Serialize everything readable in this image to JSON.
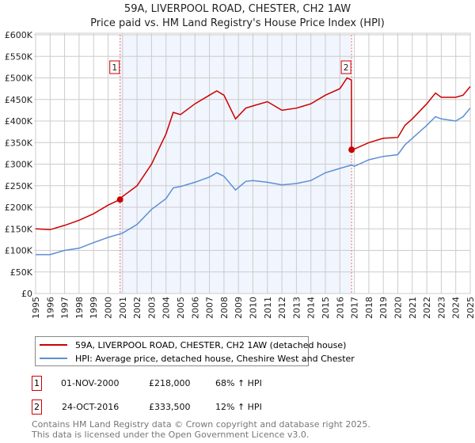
{
  "header": {
    "title": "59A, LIVERPOOL ROAD, CHESTER, CH2 1AW",
    "subtitle": "Price paid vs. HM Land Registry's House Price Index (HPI)"
  },
  "chart_data": {
    "type": "line",
    "title": "59A, LIVERPOOL ROAD, CHESTER, CH2 1AW",
    "subtitle": "Price paid vs. HM Land Registry's House Price Index (HPI)",
    "xlim": [
      1995,
      2025
    ],
    "ylim": [
      0,
      600000
    ],
    "x_ticks": [
      "1995",
      "1996",
      "1997",
      "1998",
      "1999",
      "2000",
      "2001",
      "2002",
      "2003",
      "2004",
      "2005",
      "2006",
      "2007",
      "2008",
      "2009",
      "2010",
      "2011",
      "2012",
      "2013",
      "2014",
      "2015",
      "2016",
      "2017",
      "2018",
      "2019",
      "2020",
      "2021",
      "2022",
      "2023",
      "2024",
      "2025"
    ],
    "y_ticks": [
      {
        "v": 0,
        "label": "£0"
      },
      {
        "v": 50000,
        "label": "£50K"
      },
      {
        "v": 100000,
        "label": "£100K"
      },
      {
        "v": 150000,
        "label": "£150K"
      },
      {
        "v": 200000,
        "label": "£200K"
      },
      {
        "v": 250000,
        "label": "£250K"
      },
      {
        "v": 300000,
        "label": "£300K"
      },
      {
        "v": 350000,
        "label": "£350K"
      },
      {
        "v": 400000,
        "label": "£400K"
      },
      {
        "v": 450000,
        "label": "£450K"
      },
      {
        "v": 500000,
        "label": "£500K"
      },
      {
        "v": 550000,
        "label": "£550K"
      },
      {
        "v": 600000,
        "label": "£600K"
      }
    ],
    "grid": true,
    "shaded_range": [
      2000.83,
      2016.81
    ],
    "series": [
      {
        "name": "59A, LIVERPOOL ROAD, CHESTER, CH2 1AW (detached house)",
        "color": "#cc0000",
        "x": [
          1995,
          1996,
          1997,
          1998,
          1999,
          2000,
          2000.83,
          2001,
          2002,
          2003,
          2004,
          2004.5,
          2005,
          2006,
          2007,
          2007.5,
          2008,
          2008.8,
          2009.5,
          2010,
          2011,
          2012,
          2013,
          2014,
          2015,
          2016,
          2016.5,
          2016.8,
          2016.81,
          2017,
          2018,
          2019,
          2020,
          2020.5,
          2021,
          2022,
          2022.6,
          2023,
          2024,
          2024.5,
          2025
        ],
        "y": [
          150000,
          148000,
          158000,
          170000,
          185000,
          205000,
          218000,
          225000,
          250000,
          300000,
          370000,
          420000,
          415000,
          440000,
          460000,
          470000,
          460000,
          405000,
          430000,
          435000,
          445000,
          425000,
          430000,
          440000,
          460000,
          475000,
          500000,
          495000,
          333500,
          335000,
          350000,
          360000,
          362000,
          390000,
          405000,
          440000,
          465000,
          455000,
          455000,
          460000,
          480000
        ]
      },
      {
        "name": "HPI: Average price, detached house, Cheshire West and Chester",
        "color": "#5b8fd6",
        "x": [
          1995,
          1996,
          1997,
          1998,
          1999,
          2000,
          2001,
          2002,
          2003,
          2004,
          2004.5,
          2005,
          2006,
          2007,
          2007.5,
          2008,
          2008.8,
          2009.5,
          2010,
          2011,
          2012,
          2013,
          2014,
          2015,
          2016,
          2016.8,
          2017,
          2018,
          2019,
          2020,
          2020.5,
          2021,
          2022,
          2022.6,
          2023,
          2024,
          2024.5,
          2025
        ],
        "y": [
          90000,
          90000,
          100000,
          105000,
          118000,
          130000,
          140000,
          160000,
          195000,
          220000,
          245000,
          248000,
          258000,
          270000,
          280000,
          272000,
          240000,
          260000,
          262000,
          258000,
          252000,
          255000,
          262000,
          280000,
          290000,
          298000,
          295000,
          310000,
          318000,
          322000,
          345000,
          360000,
          390000,
          410000,
          405000,
          400000,
          410000,
          430000
        ]
      }
    ],
    "annotations": [
      {
        "label": "1",
        "x": 2000.83,
        "y": 218000
      },
      {
        "label": "2",
        "x": 2016.81,
        "y": 333500
      }
    ],
    "legend": "below"
  },
  "transactions": [
    {
      "num": "1",
      "date": "01-NOV-2000",
      "price": "£218,000",
      "hpi": "68% ↑ HPI"
    },
    {
      "num": "2",
      "date": "24-OCT-2016",
      "price": "£333,500",
      "hpi": "12% ↑ HPI"
    }
  ],
  "footer": {
    "line1": "Contains HM Land Registry data © Crown copyright and database right 2025.",
    "line2": "This data is licensed under the Open Government Licence v3.0."
  }
}
